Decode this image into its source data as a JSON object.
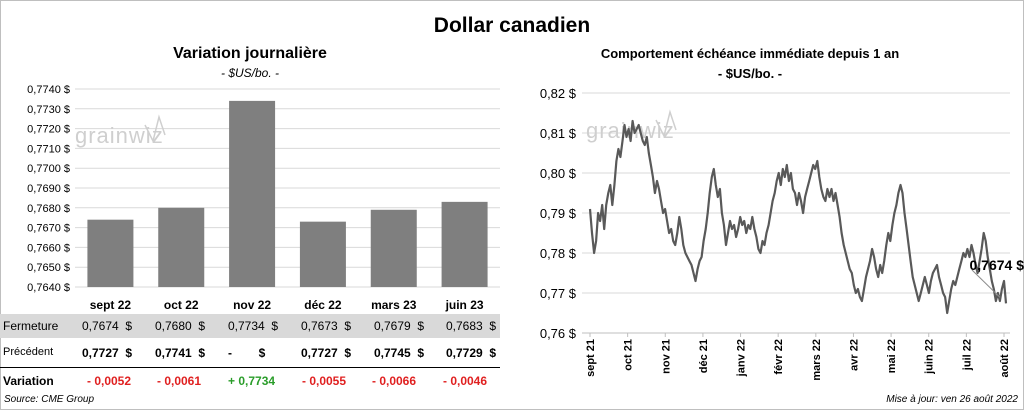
{
  "title": "Dollar canadien",
  "left": {
    "title": "Variation  journalière",
    "unit": "- $US/bo. -",
    "y_ticks": [
      "0,7740 $",
      "0,7730 $",
      "0,7720 $",
      "0,7710 $",
      "0,7700 $",
      "0,7690 $",
      "0,7680 $",
      "0,7670 $",
      "0,7660 $",
      "0,7650 $",
      "0,7640 $"
    ],
    "categories": [
      "sept 22",
      "oct 22",
      "nov 22",
      "déc 22",
      "mars 23",
      "juin 23"
    ],
    "table": {
      "rows": [
        {
          "label": "Fermeture",
          "cells": [
            "0,7674  $",
            "0,7680  $",
            "0,7734  $",
            "0,7673  $",
            "0,7679  $",
            "0,7683  $"
          ]
        },
        {
          "label": "Précédent",
          "cells": [
            "0,7727  $",
            "0,7741  $",
            "-        $",
            "0,7727  $",
            "0,7745  $",
            "0,7729  $"
          ]
        },
        {
          "label": "Variation",
          "cells": [
            "- 0,0052",
            "- 0,0061",
            "+ 0,7734",
            "- 0,0055",
            "- 0,0066",
            "- 0,0046"
          ]
        }
      ],
      "variation_colors": [
        "#e02020",
        "#e02020",
        "#2a9d2a",
        "#e02020",
        "#e02020",
        "#e02020"
      ]
    }
  },
  "right": {
    "title": "Comportement échéance immédiate depuis 1 an",
    "unit": "- $US/bo. -",
    "y_ticks": [
      "0,82 $",
      "0,81 $",
      "0,80 $",
      "0,79 $",
      "0,78 $",
      "0,77 $",
      "0,76 $"
    ],
    "x_ticks": [
      "sept 21",
      "oct 21",
      "nov 21",
      "déc 21",
      "janv 22",
      "févr 22",
      "mars 22",
      "avr 22",
      "mai 22",
      "juin 22",
      "juil 22",
      "août 22"
    ],
    "last_label": "0,7674 $"
  },
  "watermark": "grainwiz",
  "source": "Source: CME Group",
  "updated": "Mise à jour: ven 26 août 2022",
  "chart_data": [
    {
      "type": "bar",
      "title": "Variation  journalière",
      "ylabel": "- $US/bo. -",
      "categories": [
        "sept 22",
        "oct 22",
        "nov 22",
        "déc 22",
        "mars 23",
        "juin 23"
      ],
      "values": [
        0.7674,
        0.768,
        0.7734,
        0.7673,
        0.7679,
        0.7683
      ],
      "ylim": [
        0.764,
        0.774
      ],
      "grid": true,
      "bar_color": "#7f7f7f"
    },
    {
      "type": "line",
      "title": "Comportement échéance immédiate depuis 1 an",
      "ylabel": "- $US/bo. -",
      "x_start": "2021-08-26",
      "x_end": "2022-08-26",
      "ylim": [
        0.76,
        0.82
      ],
      "grid": true,
      "line_color": "#595959",
      "values": [
        0.791,
        0.785,
        0.78,
        0.783,
        0.79,
        0.788,
        0.792,
        0.786,
        0.792,
        0.795,
        0.797,
        0.792,
        0.797,
        0.803,
        0.806,
        0.804,
        0.808,
        0.812,
        0.809,
        0.811,
        0.808,
        0.813,
        0.81,
        0.811,
        0.812,
        0.81,
        0.808,
        0.807,
        0.809,
        0.805,
        0.802,
        0.799,
        0.795,
        0.798,
        0.796,
        0.793,
        0.79,
        0.791,
        0.788,
        0.785,
        0.786,
        0.783,
        0.782,
        0.785,
        0.789,
        0.786,
        0.782,
        0.78,
        0.779,
        0.778,
        0.777,
        0.775,
        0.773,
        0.776,
        0.778,
        0.779,
        0.783,
        0.786,
        0.79,
        0.795,
        0.799,
        0.801,
        0.797,
        0.794,
        0.796,
        0.79,
        0.787,
        0.782,
        0.785,
        0.788,
        0.786,
        0.787,
        0.784,
        0.786,
        0.789,
        0.787,
        0.788,
        0.785,
        0.787,
        0.786,
        0.789,
        0.786,
        0.784,
        0.781,
        0.78,
        0.783,
        0.782,
        0.785,
        0.787,
        0.79,
        0.793,
        0.795,
        0.798,
        0.8,
        0.797,
        0.801,
        0.799,
        0.802,
        0.798,
        0.8,
        0.796,
        0.795,
        0.792,
        0.795,
        0.793,
        0.79,
        0.794,
        0.796,
        0.798,
        0.8,
        0.802,
        0.801,
        0.803,
        0.799,
        0.796,
        0.794,
        0.793,
        0.796,
        0.794,
        0.796,
        0.793,
        0.795,
        0.792,
        0.789,
        0.785,
        0.782,
        0.78,
        0.778,
        0.776,
        0.775,
        0.772,
        0.77,
        0.771,
        0.769,
        0.768,
        0.771,
        0.774,
        0.776,
        0.778,
        0.781,
        0.779,
        0.776,
        0.774,
        0.777,
        0.775,
        0.778,
        0.782,
        0.785,
        0.783,
        0.787,
        0.79,
        0.792,
        0.795,
        0.797,
        0.795,
        0.79,
        0.786,
        0.782,
        0.778,
        0.774,
        0.772,
        0.77,
        0.768,
        0.77,
        0.772,
        0.774,
        0.772,
        0.77,
        0.773,
        0.775,
        0.776,
        0.777,
        0.774,
        0.772,
        0.77,
        0.769,
        0.765,
        0.768,
        0.771,
        0.773,
        0.772,
        0.774,
        0.776,
        0.778,
        0.78,
        0.779,
        0.781,
        0.779,
        0.782,
        0.78,
        0.777,
        0.775,
        0.778,
        0.781,
        0.785,
        0.783,
        0.779,
        0.776,
        0.773,
        0.771,
        0.768,
        0.77,
        0.768,
        0.771,
        0.773,
        0.7674
      ]
    }
  ]
}
